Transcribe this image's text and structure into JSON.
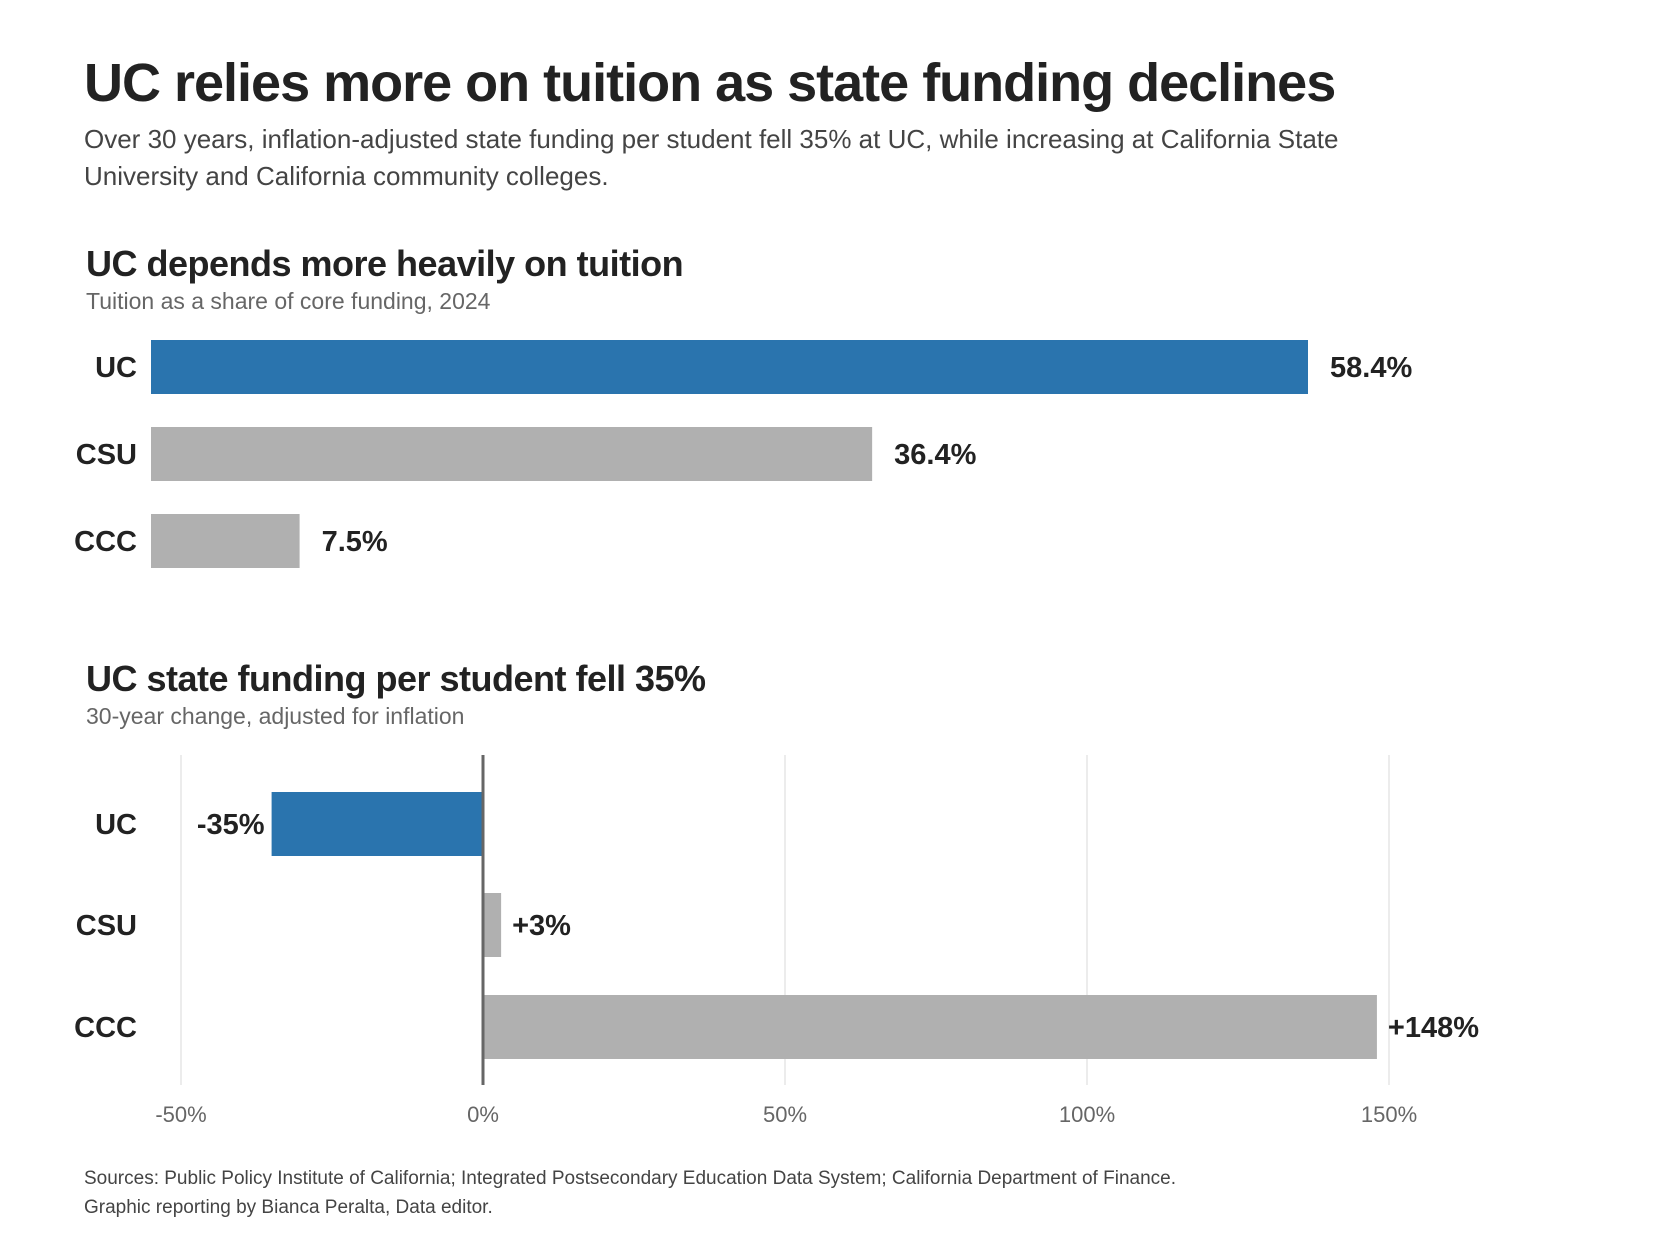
{
  "header": {
    "title": "UC relies more on tuition as state funding declines",
    "subtitle": "Over 30 years, inflation-adjusted state funding per student fell 35% at UC, while increasing at California State University and California community colleges."
  },
  "colors": {
    "highlight": "#2a74ae",
    "neutral": "#b0b0b0",
    "grid": "#e6e6e6",
    "zero_line": "#666666"
  },
  "chart_data": [
    {
      "type": "bar",
      "orientation": "horizontal",
      "title": "UC depends more heavily on tuition",
      "subtitle": "Tuition as a share of core funding, 2024",
      "categories": [
        "UC",
        "CSU",
        "CCC"
      ],
      "values": [
        58.4,
        36.4,
        7.5
      ],
      "value_labels": [
        "58.4%",
        "36.4%",
        "7.5%"
      ],
      "highlight_category": "UC",
      "xlim": [
        0,
        58.4
      ],
      "grid": false,
      "x_axis_visible": false
    },
    {
      "type": "bar",
      "orientation": "horizontal",
      "title": "UC state funding per student fell 35%",
      "subtitle": "30-year change, adjusted for inflation",
      "categories": [
        "UC",
        "CSU",
        "CCC"
      ],
      "values": [
        -35,
        3,
        148
      ],
      "value_labels": [
        "-35%",
        "+3%",
        "+148%"
      ],
      "highlight_category": "UC",
      "xlim": [
        -50,
        150
      ],
      "x_ticks": [
        -50,
        0,
        50,
        100,
        150
      ],
      "x_tick_labels": [
        "-50%",
        "0%",
        "50%",
        "100%",
        "150%"
      ],
      "grid": true
    }
  ],
  "footer": {
    "sources": "Sources: Public Policy Institute of California; Integrated Postsecondary Education Data System; California Department of Finance.",
    "credit": "Graphic reporting by Bianca Peralta, Data editor."
  }
}
